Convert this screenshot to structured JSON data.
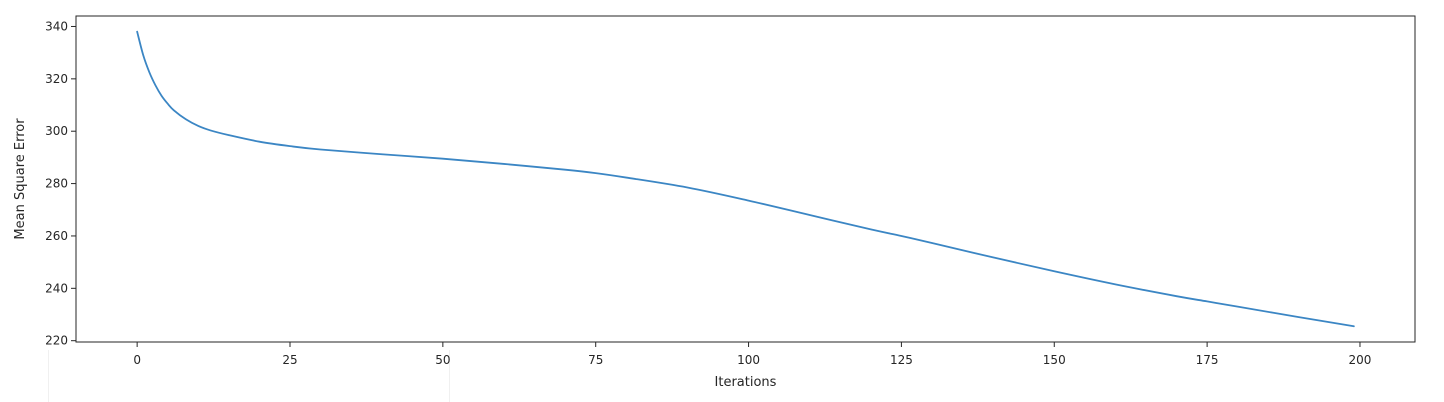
{
  "chart_data": {
    "type": "line",
    "title": "",
    "xlabel": "Iterations",
    "ylabel": "Mean Square Error",
    "xlim": [
      -10,
      209
    ],
    "ylim": [
      219.5,
      344
    ],
    "x_ticks": [
      0,
      25,
      50,
      75,
      100,
      125,
      150,
      175,
      200
    ],
    "y_ticks": [
      220,
      240,
      260,
      280,
      300,
      320,
      340
    ],
    "grid": false,
    "legend": "none",
    "series": [
      {
        "color": "#3b86c4",
        "x": [
          0,
          1,
          2,
          3,
          4,
          5,
          6,
          8,
          10,
          12,
          15,
          20,
          25,
          30,
          40,
          50,
          60,
          70,
          75,
          80,
          90,
          100,
          110,
          120,
          125,
          130,
          140,
          150,
          160,
          170,
          175,
          180,
          190,
          199
        ],
        "y": [
          338,
          329,
          322.5,
          317.5,
          313.5,
          310.5,
          308,
          304.5,
          302,
          300.3,
          298.5,
          296,
          294.3,
          293,
          291.2,
          289.5,
          287.5,
          285.3,
          284,
          282.3,
          278.5,
          273.5,
          268,
          262.5,
          260,
          257.3,
          251.8,
          246.5,
          241.5,
          237,
          235,
          233,
          229,
          225.5
        ]
      }
    ]
  }
}
